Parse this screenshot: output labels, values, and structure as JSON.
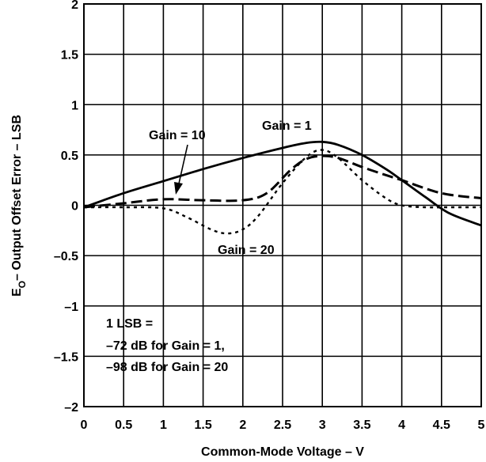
{
  "chart_data": {
    "type": "line",
    "xlabel": "Common-Mode Voltage – V",
    "ylabel_main": "E",
    "ylabel_sub": "O",
    "ylabel_rest": "– Output Offset Error – LSB",
    "xlim": [
      0,
      5
    ],
    "ylim": [
      -2,
      2
    ],
    "grid": true,
    "x_ticks": [
      "0",
      "0.5",
      "1",
      "1.5",
      "2",
      "2.5",
      "3",
      "3.5",
      "4",
      "4.5",
      "5"
    ],
    "y_ticks": [
      "–2",
      "–1.5",
      "–1",
      "–0.5",
      "0",
      "0.5",
      "1",
      "1.5",
      "2"
    ],
    "series": [
      {
        "name": "Gain = 1",
        "style": "solid",
        "x": [
          0,
          0.5,
          1,
          1.5,
          2,
          2.5,
          2.8,
          3.0,
          3.2,
          3.5,
          3.8,
          4.0,
          4.3,
          4.6,
          5.0
        ],
        "y": [
          -0.02,
          0.12,
          0.24,
          0.36,
          0.47,
          0.57,
          0.62,
          0.63,
          0.6,
          0.5,
          0.36,
          0.25,
          0.08,
          -0.08,
          -0.2
        ]
      },
      {
        "name": "Gain = 10",
        "style": "dashed",
        "x": [
          0,
          0.5,
          1,
          1.5,
          2,
          2.3,
          2.6,
          2.8,
          3.0,
          3.2,
          3.5,
          3.8,
          4.0,
          4.5,
          5.0
        ],
        "y": [
          -0.02,
          0.02,
          0.06,
          0.05,
          0.05,
          0.12,
          0.35,
          0.46,
          0.49,
          0.47,
          0.38,
          0.3,
          0.25,
          0.12,
          0.07
        ]
      },
      {
        "name": "Gain = 20",
        "style": "dotted",
        "x": [
          0,
          0.5,
          1,
          1.3,
          1.6,
          1.8,
          2.0,
          2.2,
          2.5,
          2.8,
          3.0,
          3.2,
          3.5,
          3.8,
          4.0,
          4.3,
          4.6,
          5.0
        ],
        "y": [
          -0.02,
          -0.02,
          -0.03,
          -0.12,
          -0.24,
          -0.28,
          -0.24,
          -0.1,
          0.22,
          0.48,
          0.55,
          0.47,
          0.25,
          0.07,
          0.0,
          -0.02,
          -0.02,
          -0.02
        ]
      }
    ],
    "annotations": {
      "gain1": "Gain = 1",
      "gain10": "Gain = 10",
      "gain20": "Gain = 20",
      "note_line1": "1 LSB =",
      "note_line2": "–72 dB for Gain = 1,",
      "note_line3": "–98 dB for Gain = 20"
    }
  }
}
